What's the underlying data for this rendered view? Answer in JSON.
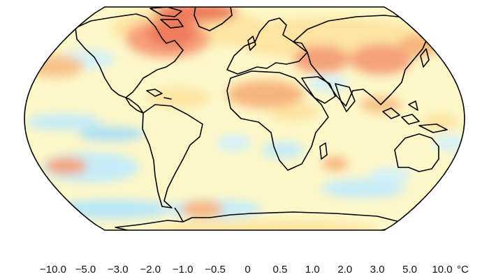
{
  "map": {
    "projection": "Robinson",
    "ocean_color": "#fdf7c8",
    "coastline_color": "#000000"
  },
  "legend": {
    "unit": "°C",
    "bins": [
      {
        "color": "#2a1acd"
      },
      {
        "color": "#2f5cf0"
      },
      {
        "color": "#4f97f5"
      },
      {
        "color": "#86cdf6"
      },
      {
        "color": "#c6ecf8"
      },
      {
        "color": "#f2fbff"
      },
      {
        "color": "#fff9cc"
      },
      {
        "color": "#fde4a2"
      },
      {
        "color": "#f7b57d"
      },
      {
        "color": "#ee7c5d"
      },
      {
        "color": "#d8323a"
      },
      {
        "color": "#a0111e"
      }
    ],
    "ticks": [
      "−10.0",
      "−5.0",
      "−3.0",
      "−2.0",
      "−1.0",
      "−0.5",
      "0",
      "0.5",
      "1.0",
      "2.0",
      "3.0",
      "5.0",
      "10.0"
    ]
  }
}
